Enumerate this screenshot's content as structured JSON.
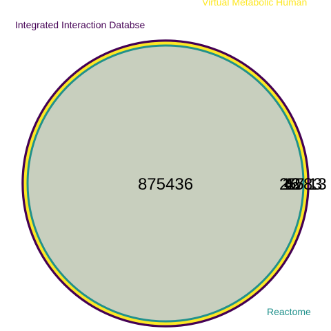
{
  "diagram": {
    "type": "venn",
    "sets": [
      {
        "name": "Integrated Interaction Databse",
        "color": "#440154"
      },
      {
        "name": "Virtual Metabolic Human",
        "color": "#fde725"
      },
      {
        "name": "Reactome",
        "color": "#21918c"
      }
    ],
    "fill_color": "#c8cfbe",
    "counts": {
      "main": "875436",
      "edge": [
        "2",
        "4",
        "5",
        "6",
        "7",
        "12",
        "13",
        "15",
        "8",
        "3"
      ]
    }
  }
}
